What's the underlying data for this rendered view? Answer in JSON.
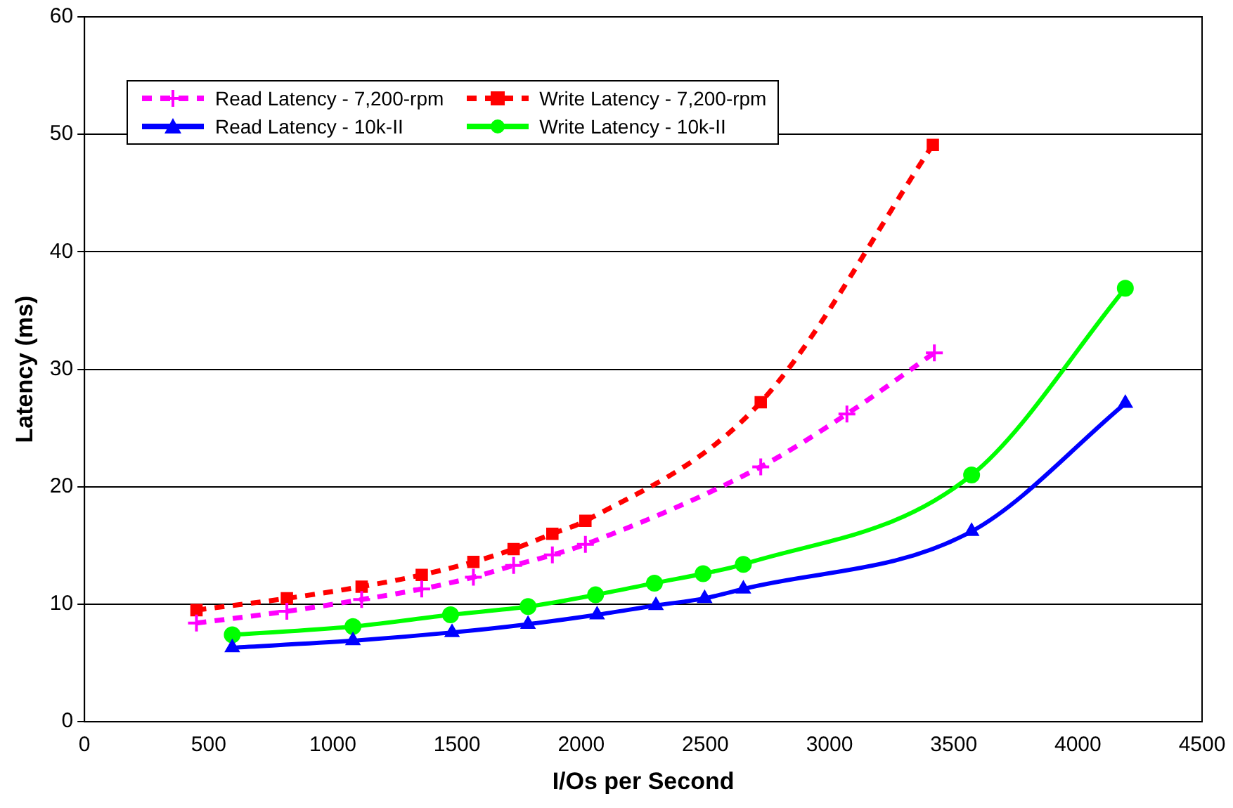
{
  "chart_data": {
    "type": "line",
    "xlabel": "I/Os per Second",
    "ylabel": "Latency (ms)",
    "xlim": [
      0,
      4500
    ],
    "xticks": [
      0,
      500,
      1000,
      1500,
      2000,
      2500,
      3000,
      3500,
      4000,
      4500
    ],
    "ylim": [
      0,
      60
    ],
    "yticks": [
      0,
      10,
      20,
      30,
      40,
      50,
      60
    ],
    "grid": "y",
    "legend": "top left",
    "series": [
      {
        "name": "Read Latency - 7,200-rpm",
        "color": "#ff00ff",
        "marker": "cross",
        "line_style": "dashed",
        "x": [
          451,
          815,
          1116,
          1358,
          1566,
          1728,
          1884,
          2017,
          2723,
          3070,
          3422
        ],
        "values": [
          8.4,
          9.4,
          10.4,
          11.3,
          12.3,
          13.3,
          14.2,
          15.1,
          21.7,
          26.2,
          31.4
        ]
      },
      {
        "name": "Write Latency - 7,200-rpm",
        "color": "#ff0000",
        "marker": "square",
        "line_style": "dashed",
        "x": [
          451,
          815,
          1116,
          1358,
          1566,
          1728,
          1884,
          2017,
          2723,
          3416
        ],
        "values": [
          9.5,
          10.5,
          11.5,
          12.5,
          13.6,
          14.7,
          16.0,
          17.1,
          27.2,
          49.1
        ]
      },
      {
        "name": "Read Latency - 10k-II",
        "color": "#0000ff",
        "marker": "triangle",
        "line_style": "solid",
        "x": [
          595,
          1081,
          1480,
          1786,
          2064,
          2301,
          2497,
          2653,
          3572,
          4191
        ],
        "values": [
          6.3,
          6.9,
          7.6,
          8.3,
          9.1,
          9.9,
          10.5,
          11.3,
          16.2,
          27.1
        ]
      },
      {
        "name": "Write Latency - 10k-II",
        "color": "#00ff00",
        "marker": "circle",
        "line_style": "solid",
        "x": [
          595,
          1081,
          1474,
          1786,
          2058,
          2295,
          2491,
          2653,
          3572,
          4191
        ],
        "values": [
          7.4,
          8.1,
          9.1,
          9.8,
          10.8,
          11.8,
          12.6,
          13.4,
          21.0,
          36.9
        ]
      }
    ]
  }
}
